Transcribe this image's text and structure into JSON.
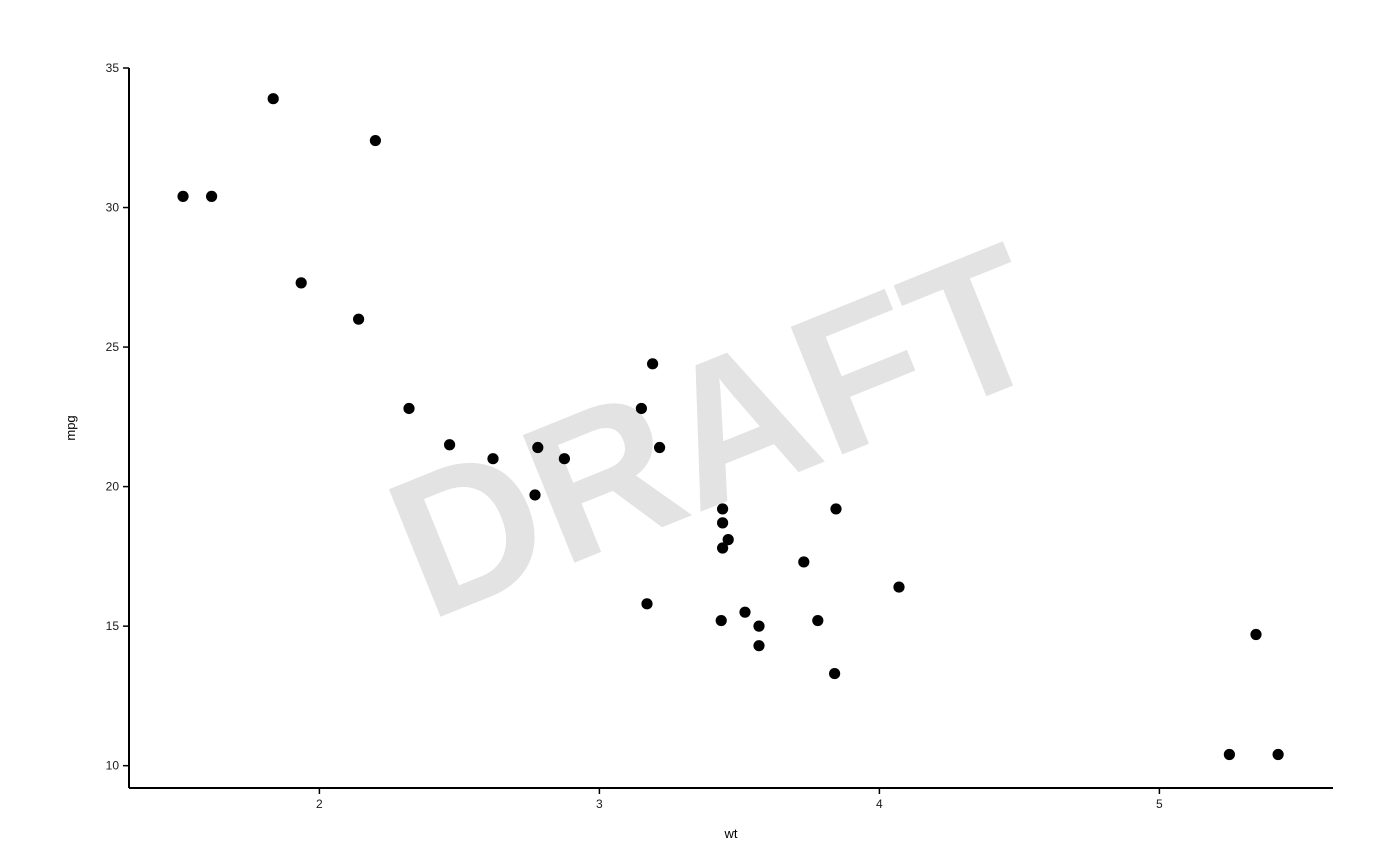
{
  "chart_data": {
    "type": "scatter",
    "title": "",
    "xlabel": "wt",
    "ylabel": "mpg",
    "xlim": [
      1.32,
      5.62
    ],
    "ylim": [
      9.2,
      35.0
    ],
    "x_ticks": [
      2,
      3,
      4,
      5
    ],
    "y_ticks": [
      10,
      15,
      20,
      25,
      30,
      35
    ],
    "grid": false,
    "legend": "none",
    "watermark": "DRAFT",
    "colors": {
      "point": "#000000",
      "axis": "#000000",
      "watermark": "#e3e3e3"
    },
    "points": [
      {
        "x": 2.62,
        "y": 21.0
      },
      {
        "x": 2.875,
        "y": 21.0
      },
      {
        "x": 2.32,
        "y": 22.8
      },
      {
        "x": 3.215,
        "y": 21.4
      },
      {
        "x": 3.44,
        "y": 18.7
      },
      {
        "x": 3.46,
        "y": 18.1
      },
      {
        "x": 3.57,
        "y": 14.3
      },
      {
        "x": 3.19,
        "y": 24.4
      },
      {
        "x": 3.15,
        "y": 22.8
      },
      {
        "x": 3.44,
        "y": 19.2
      },
      {
        "x": 3.44,
        "y": 17.8
      },
      {
        "x": 4.07,
        "y": 16.4
      },
      {
        "x": 3.73,
        "y": 17.3
      },
      {
        "x": 3.78,
        "y": 15.2
      },
      {
        "x": 5.25,
        "y": 10.4
      },
      {
        "x": 5.424,
        "y": 10.4
      },
      {
        "x": 5.345,
        "y": 14.7
      },
      {
        "x": 2.2,
        "y": 32.4
      },
      {
        "x": 1.615,
        "y": 30.4
      },
      {
        "x": 1.835,
        "y": 33.9
      },
      {
        "x": 2.465,
        "y": 21.5
      },
      {
        "x": 3.52,
        "y": 15.5
      },
      {
        "x": 3.435,
        "y": 15.2
      },
      {
        "x": 3.84,
        "y": 13.3
      },
      {
        "x": 3.845,
        "y": 19.2
      },
      {
        "x": 1.935,
        "y": 27.3
      },
      {
        "x": 2.14,
        "y": 26.0
      },
      {
        "x": 1.513,
        "y": 30.4
      },
      {
        "x": 3.17,
        "y": 15.8
      },
      {
        "x": 2.77,
        "y": 19.7
      },
      {
        "x": 3.57,
        "y": 15.0
      },
      {
        "x": 2.78,
        "y": 21.4
      }
    ]
  }
}
